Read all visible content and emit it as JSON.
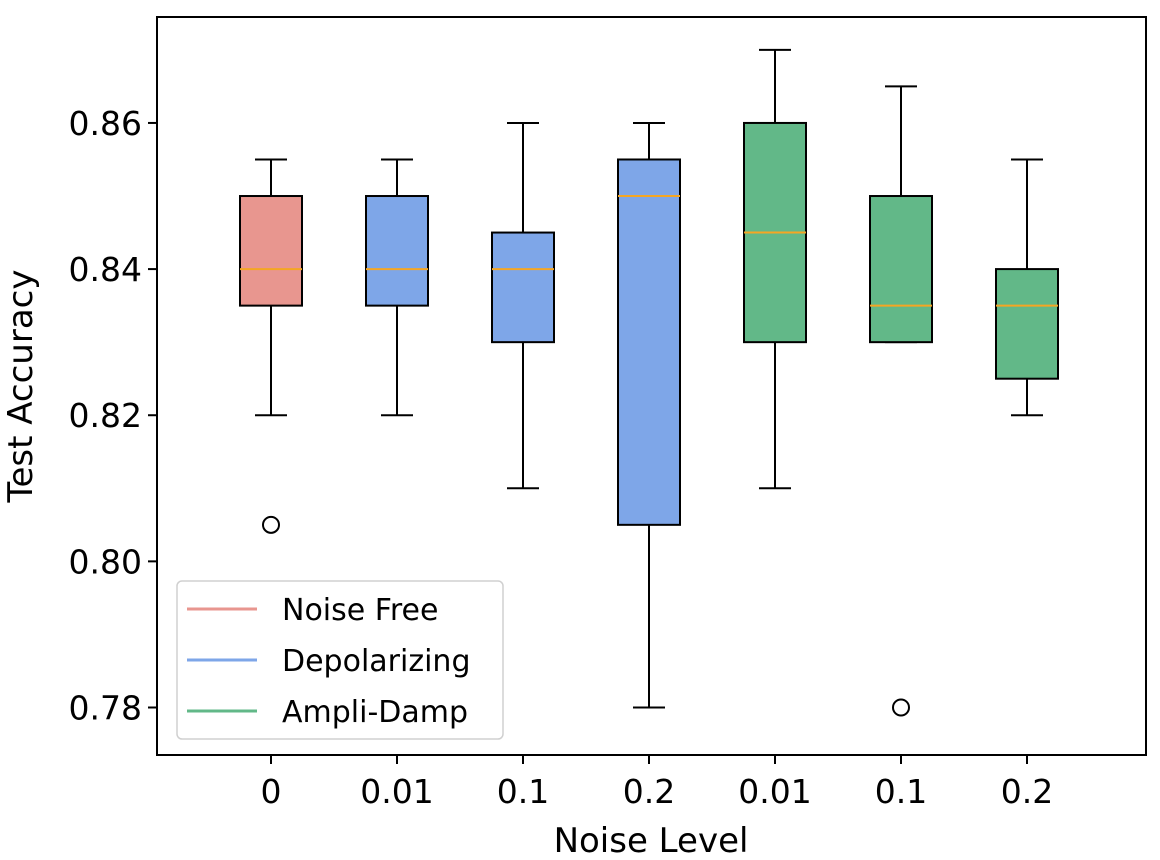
{
  "chart_data": {
    "type": "boxplot",
    "title": "",
    "xlabel": "Noise Level",
    "ylabel": "Test Accuracy",
    "ylim": [
      0.7735,
      0.8745
    ],
    "yticks": [
      0.78,
      0.8,
      0.82,
      0.84,
      0.86
    ],
    "ytick_labels": [
      "0.78",
      "0.80",
      "0.82",
      "0.84",
      "0.86"
    ],
    "grid": false,
    "legend_position": "lower-left",
    "legend": [
      {
        "name": "Noise Free",
        "color": "#E8968F"
      },
      {
        "name": "Depolarizing",
        "color": "#7EA6E8"
      },
      {
        "name": "Ampli-Damp",
        "color": "#62B888"
      }
    ],
    "median_color": "#F5A623",
    "boxes": [
      {
        "label": "0",
        "group": "Noise Free",
        "whisker_low": 0.82,
        "q1": 0.835,
        "median": 0.84,
        "q3": 0.85,
        "whisker_high": 0.855,
        "outliers": [
          0.805
        ]
      },
      {
        "label": "0.01",
        "group": "Depolarizing",
        "whisker_low": 0.82,
        "q1": 0.835,
        "median": 0.84,
        "q3": 0.85,
        "whisker_high": 0.855,
        "outliers": []
      },
      {
        "label": "0.1",
        "group": "Depolarizing",
        "whisker_low": 0.81,
        "q1": 0.83,
        "median": 0.84,
        "q3": 0.845,
        "whisker_high": 0.86,
        "outliers": []
      },
      {
        "label": "0.2",
        "group": "Depolarizing",
        "whisker_low": 0.78,
        "q1": 0.805,
        "median": 0.85,
        "q3": 0.855,
        "whisker_high": 0.86,
        "outliers": []
      },
      {
        "label": "0.01",
        "group": "Ampli-Damp",
        "whisker_low": 0.81,
        "q1": 0.83,
        "median": 0.845,
        "q3": 0.86,
        "whisker_high": 0.87,
        "outliers": []
      },
      {
        "label": "0.1",
        "group": "Ampli-Damp",
        "whisker_low": 0.83,
        "q1": 0.83,
        "median": 0.835,
        "q3": 0.85,
        "whisker_high": 0.865,
        "outliers": [
          0.78
        ]
      },
      {
        "label": "0.2",
        "group": "Ampli-Damp",
        "whisker_low": 0.82,
        "q1": 0.825,
        "median": 0.835,
        "q3": 0.84,
        "whisker_high": 0.855,
        "outliers": []
      }
    ]
  }
}
